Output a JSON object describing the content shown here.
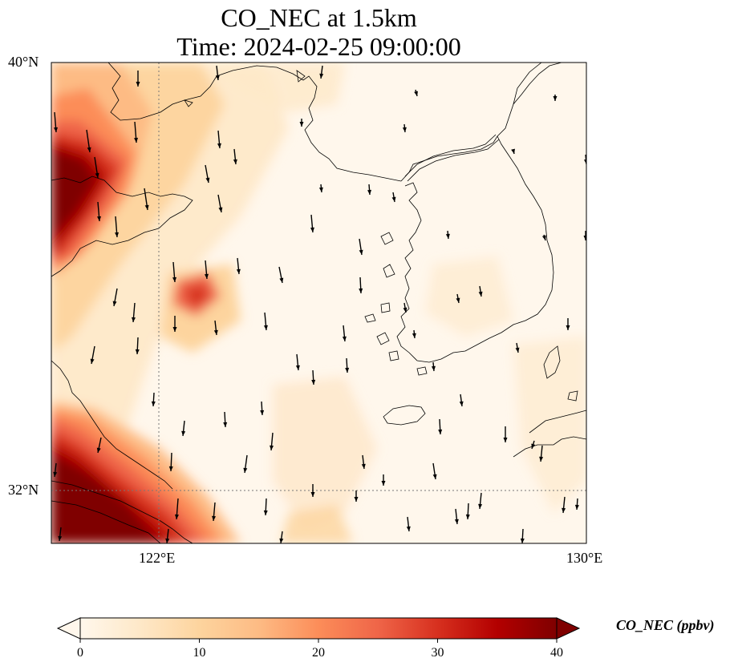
{
  "title": {
    "line1": "CO_NEC at 1.5km",
    "line2": "Time: 2024-02-25 09:00:00"
  },
  "axes": {
    "lat_ticks": [
      "40°N",
      "32°N"
    ],
    "lon_ticks": [
      "122°E",
      "130°E"
    ]
  },
  "map": {
    "extent": {
      "lon_min": 120,
      "lon_max": 130,
      "lat_min": 31,
      "lat_max": 40
    },
    "gridlines": {
      "lon": [
        122
      ],
      "lat": [
        32
      ],
      "style": "dotted"
    },
    "field": "CO_NEC",
    "level": "1.5km",
    "wind_vectors": "present, mostly pointing south",
    "high_concentration_regions": [
      "northwest corner (Shandong coast)",
      "southwest corner (Yangtze delta)",
      "small patch near 34.5°N 122.5°E"
    ]
  },
  "colorbar": {
    "label": "CO_NEC (ppbv)",
    "ticks": [
      "0",
      "10",
      "20",
      "30",
      "40"
    ],
    "min": 0,
    "max": 40,
    "colormap": "OrRd",
    "colors": [
      "#fff7ec",
      "#fee8c8",
      "#fdd49e",
      "#fdbb84",
      "#fc8d59",
      "#ef6548",
      "#d7301f",
      "#b30000",
      "#7f0000"
    ],
    "extend": "both"
  }
}
